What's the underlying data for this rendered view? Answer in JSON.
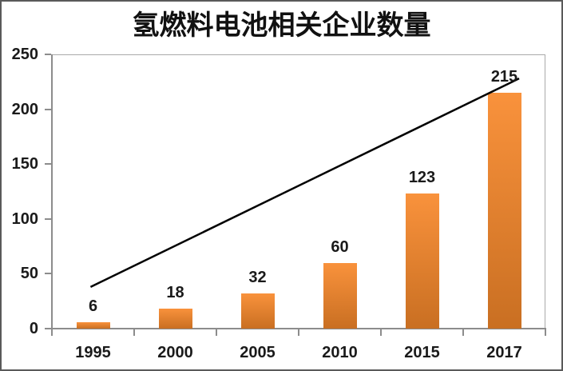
{
  "chart_data": {
    "type": "bar",
    "title": "氢燃料电池相关企业数量",
    "categories": [
      "1995",
      "2000",
      "2005",
      "2010",
      "2015",
      "2017"
    ],
    "values": [
      6,
      18,
      32,
      60,
      123,
      215
    ],
    "data_labels": [
      "6",
      "18",
      "32",
      "60",
      "123",
      "215"
    ],
    "xlabel": "",
    "ylabel": "",
    "ylim": [
      0,
      250
    ],
    "yticks": [
      0,
      50,
      100,
      150,
      200,
      250
    ],
    "grid": false,
    "legend": "none",
    "trendline": {
      "shape": "linear",
      "points": [
        {
          "x_index": -0.03,
          "value": 38
        },
        {
          "x_index": 5.18,
          "value": 228
        }
      ]
    }
  },
  "colors": {
    "bar_gradient_top": "#F9923C",
    "bar_gradient_bottom": "#C96F22",
    "axis": "#8C8C8C",
    "plot_border": "#A9A9A9",
    "trendline": "#000000",
    "text": "#1A1A1A",
    "frame_border": "#5A5A5A",
    "background": "#FFFFFF"
  }
}
